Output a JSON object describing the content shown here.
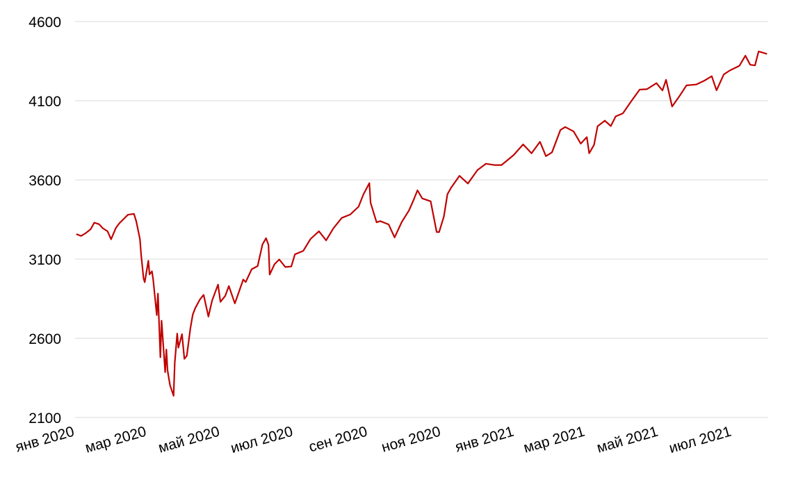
{
  "chart_data": {
    "type": "line",
    "title": "",
    "xlabel": "",
    "ylabel": "",
    "ylim": [
      2100,
      4600
    ],
    "yticks": [
      2100,
      2600,
      3100,
      3600,
      4100,
      4600
    ],
    "grid": "horizontal",
    "legend": "none",
    "line_color": "#c00000",
    "x_tick_labels": [
      {
        "date": "2020-01-01",
        "label": "янв 2020"
      },
      {
        "date": "2020-03-01",
        "label": "мар 2020"
      },
      {
        "date": "2020-05-01",
        "label": "май 2020"
      },
      {
        "date": "2020-07-01",
        "label": "июл 2020"
      },
      {
        "date": "2020-09-01",
        "label": "сен 2020"
      },
      {
        "date": "2020-11-01",
        "label": "ноя 2020"
      },
      {
        "date": "2021-01-01",
        "label": "янв 2021"
      },
      {
        "date": "2021-03-01",
        "label": "мар 2021"
      },
      {
        "date": "2021-05-01",
        "label": "май 2021"
      },
      {
        "date": "2021-07-01",
        "label": "июл 2021"
      }
    ],
    "xlim": [
      "2020-01-01",
      "2021-07-31"
    ],
    "series": [
      {
        "x": [
          "2020-01-02",
          "2020-01-06",
          "2020-01-10",
          "2020-01-14",
          "2020-01-17",
          "2020-01-21",
          "2020-01-24",
          "2020-01-28",
          "2020-01-31",
          "2020-02-04",
          "2020-02-07",
          "2020-02-11",
          "2020-02-14",
          "2020-02-19",
          "2020-02-21",
          "2020-02-24",
          "2020-02-25",
          "2020-02-27",
          "2020-02-28",
          "2020-03-02",
          "2020-03-03",
          "2020-03-05",
          "2020-03-06",
          "2020-03-09",
          "2020-03-10",
          "2020-03-12",
          "2020-03-13",
          "2020-03-16",
          "2020-03-17",
          "2020-03-18",
          "2020-03-20",
          "2020-03-23",
          "2020-03-24",
          "2020-03-26",
          "2020-03-27",
          "2020-03-30",
          "2020-04-01",
          "2020-04-03",
          "2020-04-06",
          "2020-04-08",
          "2020-04-10",
          "2020-04-14",
          "2020-04-17",
          "2020-04-21",
          "2020-04-24",
          "2020-04-29",
          "2020-05-01",
          "2020-05-05",
          "2020-05-08",
          "2020-05-13",
          "2020-05-15",
          "2020-05-20",
          "2020-05-22",
          "2020-05-27",
          "2020-06-01",
          "2020-06-05",
          "2020-06-08",
          "2020-06-10",
          "2020-06-11",
          "2020-06-15",
          "2020-06-19",
          "2020-06-24",
          "2020-06-29",
          "2020-07-02",
          "2020-07-09",
          "2020-07-15",
          "2020-07-22",
          "2020-07-28",
          "2020-08-03",
          "2020-08-10",
          "2020-08-17",
          "2020-08-24",
          "2020-08-28",
          "2020-09-02",
          "2020-09-03",
          "2020-09-08",
          "2020-09-11",
          "2020-09-18",
          "2020-09-23",
          "2020-09-29",
          "2020-10-05",
          "2020-10-09",
          "2020-10-12",
          "2020-10-16",
          "2020-10-23",
          "2020-10-28",
          "2020-10-30",
          "2020-11-03",
          "2020-11-06",
          "2020-11-09",
          "2020-11-16",
          "2020-11-23",
          "2020-12-01",
          "2020-12-08",
          "2020-12-15",
          "2020-12-21",
          "2020-12-31",
          "2021-01-08",
          "2021-01-15",
          "2021-01-22",
          "2021-01-27",
          "2021-02-01",
          "2021-02-08",
          "2021-02-12",
          "2021-02-19",
          "2021-02-25",
          "2021-03-02",
          "2021-03-04",
          "2021-03-08",
          "2021-03-11",
          "2021-03-17",
          "2021-03-22",
          "2021-03-26",
          "2021-04-01",
          "2021-04-08",
          "2021-04-15",
          "2021-04-21",
          "2021-04-29",
          "2021-05-04",
          "2021-05-07",
          "2021-05-12",
          "2021-05-18",
          "2021-05-24",
          "2021-06-01",
          "2021-06-08",
          "2021-06-14",
          "2021-06-18",
          "2021-06-24",
          "2021-06-29",
          "2021-07-07",
          "2021-07-12",
          "2021-07-16",
          "2021-07-20",
          "2021-07-23",
          "2021-07-28",
          "2021-07-30"
        ],
        "values": [
          3258,
          3246,
          3265,
          3289,
          3330,
          3320,
          3295,
          3276,
          3225,
          3297,
          3327,
          3357,
          3380,
          3386,
          3337,
          3226,
          3128,
          2978,
          2954,
          3090,
          3003,
          3023,
          2972,
          2746,
          2882,
          2480,
          2711,
          2386,
          2529,
          2398,
          2305,
          2237,
          2447,
          2630,
          2541,
          2626,
          2470,
          2489,
          2664,
          2750,
          2790,
          2846,
          2874,
          2737,
          2837,
          2939,
          2830,
          2868,
          2930,
          2820,
          2863,
          2971,
          2955,
          3036,
          3056,
          3193,
          3232,
          3190,
          3002,
          3067,
          3098,
          3050,
          3053,
          3130,
          3152,
          3227,
          3276,
          3218,
          3294,
          3360,
          3381,
          3431,
          3508,
          3580,
          3455,
          3332,
          3340,
          3319,
          3237,
          3335,
          3408,
          3477,
          3534,
          3483,
          3465,
          3271,
          3270,
          3369,
          3509,
          3550,
          3626,
          3577,
          3662,
          3702,
          3694,
          3694,
          3756,
          3824,
          3768,
          3841,
          3750,
          3774,
          3915,
          3934,
          3906,
          3829,
          3870,
          3768,
          3821,
          3939,
          3974,
          3940,
          4001,
          4020,
          4097,
          4170,
          4173,
          4211,
          4165,
          4232,
          4063,
          4127,
          4197,
          4202,
          4227,
          4255,
          4166,
          4266,
          4291,
          4320,
          4384,
          4327,
          4323,
          4411,
          4400,
          4395
        ]
      }
    ]
  }
}
